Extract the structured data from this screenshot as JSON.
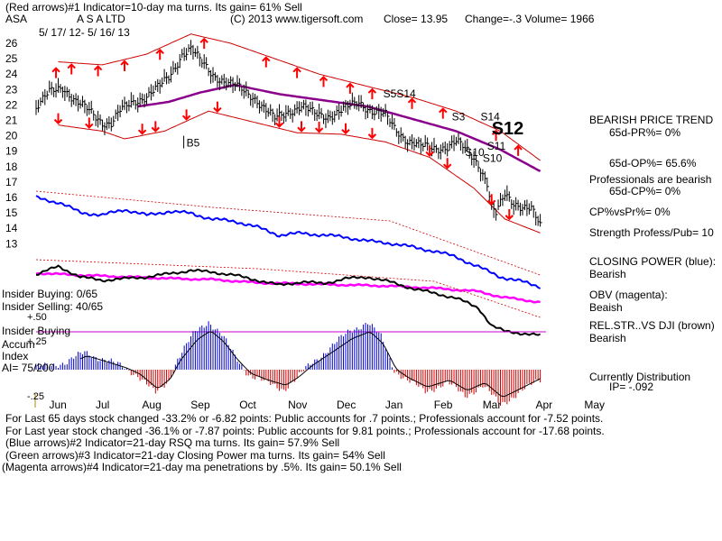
{
  "header": {
    "line1": "(Red arrows)#1 Indicator=10-day ma turns. Its gain= 61% Sell",
    "ticker": "ASA",
    "company": "A S A LTD",
    "copyright": "(C) 2013 www.tigersoft.com",
    "close": "Close=  13.95",
    "change": "Change=-.3 Volume=  1966",
    "daterange": "5/ 17/ 12-  5/ 16/ 13"
  },
  "left_labels": {
    "insider_buying": "Insider Buying: 0/65",
    "insider_selling": "Insider Selling: 40/65",
    "plus50": "+.50",
    "insider_buying2": "Insider Buying",
    "accum": "Accum",
    "plus25": "+.25",
    "index": "Index",
    "ai": "AI= 75/200",
    "minus25": "-.25"
  },
  "side_panel": {
    "bearish_trend": "BEARISH PRICE TREND",
    "pr": "65d-PR%= 0%",
    "op": "65d-OP%= 65.6%",
    "professionals": "Professionals are bearish",
    "cp": "65d-CP%= 0%",
    "cpvspr": "CP%vsPr%=  0%",
    "strength": "Strength Profess/Pub= 10",
    "closing_power": "CLOSING POWER (blue):",
    "closing_power_v": "Bearish",
    "obv": "OBV (magenta):",
    "obv_v": "Beaish",
    "relstr": "REL.STR..VS DJI (brown)",
    "relstr_v": "Bearish",
    "distribution": "Currently Distribution",
    "ip": "IP= -.092"
  },
  "footer": {
    "line1": "For Last 65 days stock changed -33.2% or -6.82 points:  Public accounts for  .7 points.;  Professionals account for -7.52 points.",
    "line2": "For Last year stock changed -36.1% or -7.87 points:  Public accounts for  9.81 points.;  Professionals account for -17.68 points.",
    "line3": "(Blue arrows)#2 Indicator=21-day RSQ ma turns. Its gain= 57.9% Sell",
    "line4": "(Green arrows)#3 Indicator=21-day Closing Power ma turns. Its gain= 54% Sell",
    "line5": "(Magenta arrows)#4 Indicator=21-day ma penetrations by .5%. Its gain= 50.1% Sell"
  },
  "colors": {
    "price": "#000000",
    "band": "#cc0000",
    "ma": "#8b008b",
    "closing_power": "#0000ff",
    "obv": "#ff00ff",
    "relstr": "#000000",
    "accum_pos": "#0000cc",
    "accum_neg": "#cc0000",
    "arrow": "#ff0000",
    "refline": "#cc00cc"
  },
  "chart_data": {
    "type": "line",
    "title": "ASA  A S A LTD  5/17/12 - 5/16/13",
    "ylim": [
      13,
      26.5
    ],
    "y_ticks": [
      26,
      25,
      24,
      23,
      22,
      21,
      20,
      19,
      18,
      17,
      16,
      15,
      14,
      13
    ],
    "months": [
      "Jun",
      "Jul",
      "Aug",
      "Sep",
      "Oct",
      "Nov",
      "Dec",
      "Jan",
      "Feb",
      "Mar",
      "Apr",
      "May"
    ],
    "month_index": [
      10,
      31,
      52,
      74,
      96,
      118,
      140,
      162,
      184,
      206,
      230,
      252
    ],
    "price_keypoints": [
      [
        0,
        21.8
      ],
      [
        6,
        22.8
      ],
      [
        12,
        23.2
      ],
      [
        18,
        22.2
      ],
      [
        24,
        21.6
      ],
      [
        30,
        20.9
      ],
      [
        34,
        20.8
      ],
      [
        38,
        21.6
      ],
      [
        44,
        22.2
      ],
      [
        50,
        22.6
      ],
      [
        56,
        23.2
      ],
      [
        60,
        23.8
      ],
      [
        66,
        25.3
      ],
      [
        70,
        25.6
      ],
      [
        74,
        24.9
      ],
      [
        80,
        24.0
      ],
      [
        86,
        23.4
      ],
      [
        92,
        23.1
      ],
      [
        98,
        22.6
      ],
      [
        104,
        21.6
      ],
      [
        108,
        21.1
      ],
      [
        114,
        21.6
      ],
      [
        120,
        21.9
      ],
      [
        126,
        21.4
      ],
      [
        132,
        21.3
      ],
      [
        138,
        21.6
      ],
      [
        146,
        22.2
      ],
      [
        152,
        21.6
      ],
      [
        158,
        21.3
      ],
      [
        162,
        20.5
      ],
      [
        168,
        19.7
      ],
      [
        174,
        19.3
      ],
      [
        180,
        19.2
      ],
      [
        186,
        19.3
      ],
      [
        190,
        19.6
      ],
      [
        196,
        18.9
      ],
      [
        200,
        18.2
      ],
      [
        204,
        16.9
      ],
      [
        206,
        15.3
      ],
      [
        208,
        14.9
      ],
      [
        212,
        16.2
      ],
      [
        216,
        15.7
      ],
      [
        220,
        15.4
      ],
      [
        224,
        15.2
      ],
      [
        228,
        14.1
      ]
    ],
    "ma_keypoints": [
      [
        46,
        21.9
      ],
      [
        60,
        22.2
      ],
      [
        74,
        22.8
      ],
      [
        90,
        23.3
      ],
      [
        110,
        22.7
      ],
      [
        130,
        22.3
      ],
      [
        150,
        21.9
      ],
      [
        170,
        21.1
      ],
      [
        190,
        20.3
      ],
      [
        210,
        19.1
      ],
      [
        228,
        17.7
      ]
    ],
    "upper_band_keypoints": [
      [
        10,
        24.8
      ],
      [
        30,
        24.6
      ],
      [
        50,
        25.3
      ],
      [
        70,
        26.6
      ],
      [
        88,
        26.0
      ],
      [
        108,
        25.0
      ],
      [
        128,
        24.0
      ],
      [
        150,
        23.2
      ],
      [
        170,
        22.5
      ],
      [
        190,
        21.6
      ],
      [
        210,
        20.3
      ],
      [
        228,
        18.4
      ]
    ],
    "lower_band_keypoints": [
      [
        10,
        20.7
      ],
      [
        30,
        20.3
      ],
      [
        40,
        19.8
      ],
      [
        58,
        20.3
      ],
      [
        78,
        21.6
      ],
      [
        98,
        20.9
      ],
      [
        118,
        20.2
      ],
      [
        138,
        20.1
      ],
      [
        158,
        19.6
      ],
      [
        178,
        18.6
      ],
      [
        198,
        16.6
      ],
      [
        212,
        14.6
      ],
      [
        228,
        13.7
      ]
    ],
    "closing_power_keypoints": [
      [
        0,
        0.9
      ],
      [
        10,
        0.85
      ],
      [
        20,
        0.75
      ],
      [
        30,
        0.72
      ],
      [
        40,
        0.78
      ],
      [
        50,
        0.72
      ],
      [
        60,
        0.76
      ],
      [
        70,
        0.74
      ],
      [
        80,
        0.68
      ],
      [
        90,
        0.66
      ],
      [
        100,
        0.6
      ],
      [
        110,
        0.52
      ],
      [
        120,
        0.54
      ],
      [
        130,
        0.52
      ],
      [
        140,
        0.5
      ],
      [
        150,
        0.46
      ],
      [
        160,
        0.44
      ],
      [
        170,
        0.4
      ],
      [
        180,
        0.36
      ],
      [
        190,
        0.3
      ],
      [
        200,
        0.2
      ],
      [
        210,
        0.1
      ],
      [
        220,
        0.05
      ],
      [
        228,
        0.0
      ]
    ],
    "obv_keypoints": [
      [
        0,
        0.62
      ],
      [
        20,
        0.58
      ],
      [
        40,
        0.55
      ],
      [
        60,
        0.52
      ],
      [
        80,
        0.5
      ],
      [
        100,
        0.44
      ],
      [
        120,
        0.42
      ],
      [
        140,
        0.4
      ],
      [
        160,
        0.38
      ],
      [
        180,
        0.34
      ],
      [
        200,
        0.28
      ],
      [
        210,
        0.18
      ],
      [
        228,
        0.08
      ]
    ],
    "relstr_keypoints": [
      [
        0,
        0.75
      ],
      [
        10,
        0.85
      ],
      [
        20,
        0.72
      ],
      [
        30,
        0.68
      ],
      [
        40,
        0.7
      ],
      [
        50,
        0.72
      ],
      [
        60,
        0.76
      ],
      [
        70,
        0.8
      ],
      [
        80,
        0.78
      ],
      [
        90,
        0.74
      ],
      [
        100,
        0.68
      ],
      [
        110,
        0.62
      ],
      [
        120,
        0.66
      ],
      [
        130,
        0.64
      ],
      [
        140,
        0.7
      ],
      [
        150,
        0.72
      ],
      [
        160,
        0.66
      ],
      [
        170,
        0.58
      ],
      [
        180,
        0.52
      ],
      [
        190,
        0.46
      ],
      [
        200,
        0.34
      ],
      [
        206,
        0.12
      ],
      [
        212,
        0.05
      ],
      [
        228,
        0.0
      ]
    ],
    "accum_keypoints": [
      [
        0,
        0.02
      ],
      [
        14,
        0.07
      ],
      [
        22,
        0.16
      ],
      [
        30,
        0.1
      ],
      [
        40,
        0.02
      ],
      [
        46,
        -0.05
      ],
      [
        54,
        -0.22
      ],
      [
        60,
        -0.1
      ],
      [
        64,
        0.1
      ],
      [
        72,
        0.35
      ],
      [
        78,
        0.45
      ],
      [
        84,
        0.32
      ],
      [
        90,
        0.12
      ],
      [
        96,
        -0.04
      ],
      [
        104,
        -0.12
      ],
      [
        112,
        -0.18
      ],
      [
        118,
        -0.08
      ],
      [
        124,
        0.05
      ],
      [
        134,
        0.22
      ],
      [
        142,
        0.36
      ],
      [
        150,
        0.44
      ],
      [
        156,
        0.3
      ],
      [
        162,
        0.0
      ],
      [
        168,
        -0.1
      ],
      [
        176,
        -0.2
      ],
      [
        186,
        -0.12
      ],
      [
        194,
        -0.24
      ],
      [
        202,
        -0.15
      ],
      [
        210,
        -0.32
      ],
      [
        218,
        -0.22
      ],
      [
        228,
        -0.09
      ]
    ],
    "accum_range": [
      -0.28,
      0.5
    ],
    "signals": [
      {
        "label": "B5",
        "x": 68,
        "y": 19.3
      },
      {
        "label": "S5",
        "x": 157,
        "y": 22.5
      },
      {
        "label": "S14",
        "x": 163,
        "y": 22.5
      },
      {
        "label": "S3",
        "x": 188,
        "y": 21.0
      },
      {
        "label": "S14",
        "x": 201,
        "y": 21.0
      },
      {
        "label": "S12",
        "x": 206,
        "y": 20.1
      },
      {
        "label": "S11",
        "x": 204,
        "y": 19.1
      },
      {
        "label": "S10",
        "x": 194,
        "y": 18.7
      },
      {
        "label": "S10",
        "x": 202,
        "y": 18.3
      }
    ],
    "up_arrows": [
      10,
      24,
      48,
      54,
      68,
      82,
      110,
      120,
      128,
      140,
      152,
      178,
      186,
      206,
      214
    ],
    "down_arrows": [
      9,
      16,
      28,
      40,
      56,
      76,
      104,
      118,
      130,
      142,
      152,
      170,
      184,
      208,
      218
    ]
  }
}
